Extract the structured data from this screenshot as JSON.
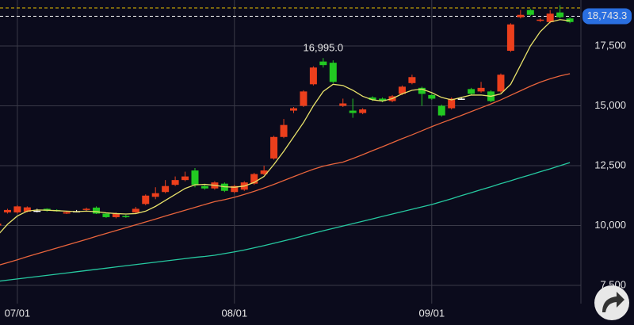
{
  "chart_data": {
    "type": "candlestick",
    "categories": [
      null,
      null,
      "07/01",
      null,
      null,
      null,
      null,
      null,
      null,
      null,
      null,
      null,
      null,
      null,
      null,
      null,
      null,
      null,
      null,
      null,
      null,
      null,
      null,
      null,
      "08/01",
      null,
      null,
      null,
      null,
      null,
      null,
      null,
      null,
      null,
      null,
      null,
      null,
      null,
      null,
      null,
      null,
      null,
      null,
      null,
      "09/01",
      null,
      null,
      null,
      null,
      null,
      null,
      null,
      null,
      null,
      null,
      null,
      null,
      null,
      null
    ],
    "open": [
      10000,
      10550,
      10550,
      10580,
      10620,
      10700,
      10650,
      10500,
      10600,
      10650,
      10750,
      10500,
      10350,
      10400,
      10550,
      10900,
      11200,
      11400,
      11700,
      11900,
      12300,
      11650,
      11550,
      11750,
      11400,
      11500,
      11750,
      12150,
      12800,
      13700,
      14800,
      15000,
      15900,
      16850,
      16800,
      15000,
      14800,
      14700,
      15350,
      15300,
      15200,
      15500,
      15950,
      15750,
      15450,
      15000,
      14900,
      15300,
      15700,
      15600,
      15600,
      15600,
      17300,
      18700,
      19000,
      18550,
      18500,
      18900,
      18650
    ],
    "high": [
      10100,
      10700,
      10850,
      10800,
      10700,
      10720,
      10680,
      10600,
      10650,
      10750,
      10800,
      10550,
      10550,
      10450,
      10780,
      11300,
      11600,
      11900,
      12050,
      12250,
      12400,
      11700,
      11850,
      11800,
      11700,
      11850,
      12200,
      12500,
      13750,
      14450,
      14950,
      15650,
      16650,
      16995,
      16900,
      15300,
      15300,
      14900,
      15400,
      15350,
      15450,
      15850,
      16300,
      15800,
      15500,
      15050,
      15350,
      15350,
      15750,
      16000,
      15650,
      16350,
      18450,
      19000,
      19050,
      18650,
      19000,
      19200,
      18700
    ],
    "low": [
      9980,
      10500,
      10500,
      10550,
      10550,
      10580,
      10580,
      10480,
      10550,
      10600,
      10480,
      10320,
      10300,
      10320,
      10480,
      10850,
      11100,
      11350,
      11650,
      11850,
      11600,
      11500,
      11500,
      11400,
      11350,
      11450,
      11700,
      12100,
      12750,
      13650,
      14700,
      14950,
      15850,
      16600,
      15950,
      14950,
      14500,
      14650,
      15200,
      15150,
      15150,
      15450,
      15900,
      15000,
      15250,
      14550,
      14850,
      15250,
      15450,
      15550,
      15150,
      15550,
      17250,
      18650,
      18750,
      18500,
      18450,
      18650,
      18450
    ],
    "close": [
      10080,
      10650,
      10800,
      10760,
      10620,
      10620,
      10600,
      10560,
      10600,
      10700,
      10500,
      10350,
      10500,
      10350,
      10700,
      11250,
      11350,
      11650,
      11900,
      12050,
      11700,
      11550,
      11800,
      11450,
      11650,
      11800,
      12150,
      12300,
      13700,
      14200,
      14900,
      15600,
      16600,
      16700,
      16000,
      15100,
      14700,
      14850,
      15250,
      15200,
      15400,
      15800,
      16200,
      15500,
      15300,
      14600,
      15300,
      15300,
      15500,
      15750,
      15200,
      16300,
      18400,
      18800,
      18800,
      18600,
      18850,
      18700,
      18500
    ],
    "up_color": "#ec3f1c",
    "down_color": "#22c922",
    "flat_color": "#ffffff",
    "series": [
      {
        "color": "#e8e26a",
        "values": [
          9590,
          10050,
          10400,
          10600,
          10650,
          10640,
          10620,
          10600,
          10580,
          10600,
          10580,
          10530,
          10500,
          10480,
          10500,
          10600,
          10800,
          11050,
          11300,
          11550,
          11700,
          11720,
          11680,
          11620,
          11600,
          11650,
          11800,
          12050,
          12550,
          13100,
          13700,
          14300,
          15000,
          15600,
          15900,
          15850,
          15650,
          15400,
          15250,
          15200,
          15300,
          15500,
          15650,
          15700,
          15550,
          15350,
          15250,
          15350,
          15450,
          15450,
          15400,
          15500,
          15900,
          16700,
          17500,
          18100,
          18500,
          18600,
          18550
        ]
      },
      {
        "color": "#e8643c",
        "values": [
          8330,
          8450,
          8570,
          8700,
          8820,
          8940,
          9060,
          9180,
          9300,
          9420,
          9550,
          9670,
          9790,
          9910,
          10030,
          10150,
          10270,
          10400,
          10520,
          10640,
          10760,
          10880,
          11000,
          11080,
          11180,
          11300,
          11430,
          11570,
          11720,
          11880,
          12040,
          12200,
          12350,
          12480,
          12570,
          12650,
          12800,
          12960,
          13130,
          13290,
          13460,
          13630,
          13790,
          13960,
          14130,
          14290,
          14440,
          14600,
          14760,
          14920,
          15080,
          15250,
          15440,
          15630,
          15820,
          15990,
          16130,
          16250,
          16340
        ]
      },
      {
        "color": "#26c9a0",
        "values": [
          7670,
          7720,
          7770,
          7820,
          7870,
          7920,
          7970,
          8020,
          8070,
          8120,
          8170,
          8220,
          8270,
          8320,
          8370,
          8420,
          8470,
          8520,
          8570,
          8620,
          8670,
          8710,
          8760,
          8830,
          8900,
          8980,
          9070,
          9160,
          9260,
          9360,
          9460,
          9570,
          9680,
          9780,
          9880,
          9980,
          10080,
          10180,
          10280,
          10380,
          10480,
          10580,
          10680,
          10780,
          10880,
          11000,
          11120,
          11250,
          11370,
          11500,
          11620,
          11750,
          11870,
          12000,
          12120,
          12250,
          12370,
          12500,
          12630
        ]
      }
    ],
    "ylim": [
      6740,
      19420
    ],
    "yticks": [
      {
        "value": 7500,
        "label": "7,500"
      },
      {
        "value": 10000,
        "label": "10,000"
      },
      {
        "value": 12500,
        "label": "12,500"
      },
      {
        "value": 15000,
        "label": "15,000"
      },
      {
        "value": 17500,
        "label": "17,500"
      }
    ],
    "grid": true,
    "annotation": {
      "index": 33,
      "value": 16995,
      "label": "16,995.0"
    },
    "last_price": {
      "value": 18743.3,
      "label": "18,743.3",
      "color": "#2a6fe0"
    },
    "high_line": {
      "value": 19090,
      "color": "#e8c000"
    }
  }
}
